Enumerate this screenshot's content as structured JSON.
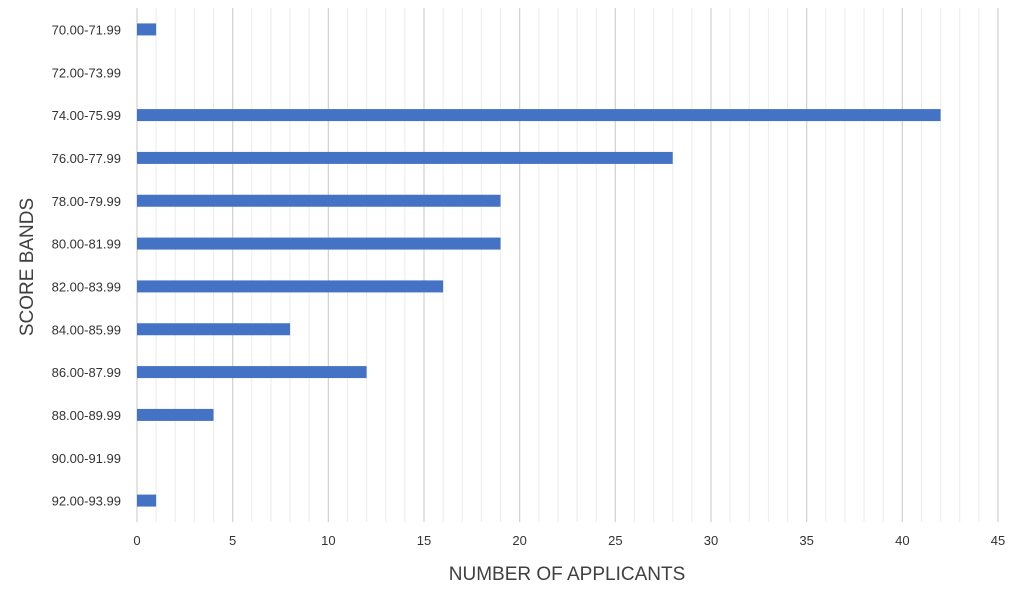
{
  "chart_data": {
    "type": "bar",
    "orientation": "horizontal",
    "categories": [
      "70.00-71.99",
      "72.00-73.99",
      "74.00-75.99",
      "76.00-77.99",
      "78.00-79.99",
      "80.00-81.99",
      "82.00-83.99",
      "84.00-85.99",
      "86.00-87.99",
      "88.00-89.99",
      "90.00-91.99",
      "92.00-93.99"
    ],
    "values": [
      1,
      0,
      42,
      28,
      19,
      19,
      16,
      8,
      12,
      4,
      0,
      1
    ],
    "xlabel": "NUMBER OF APPLICANTS",
    "ylabel": "SCORE BANDS",
    "xlim": [
      0,
      45
    ],
    "xticks": [
      "0",
      "5",
      "10",
      "15",
      "20",
      "25",
      "30",
      "35",
      "40",
      "45"
    ],
    "grid": true,
    "bar_color": "#4472c4",
    "grid_color": "#d9d9d9"
  }
}
